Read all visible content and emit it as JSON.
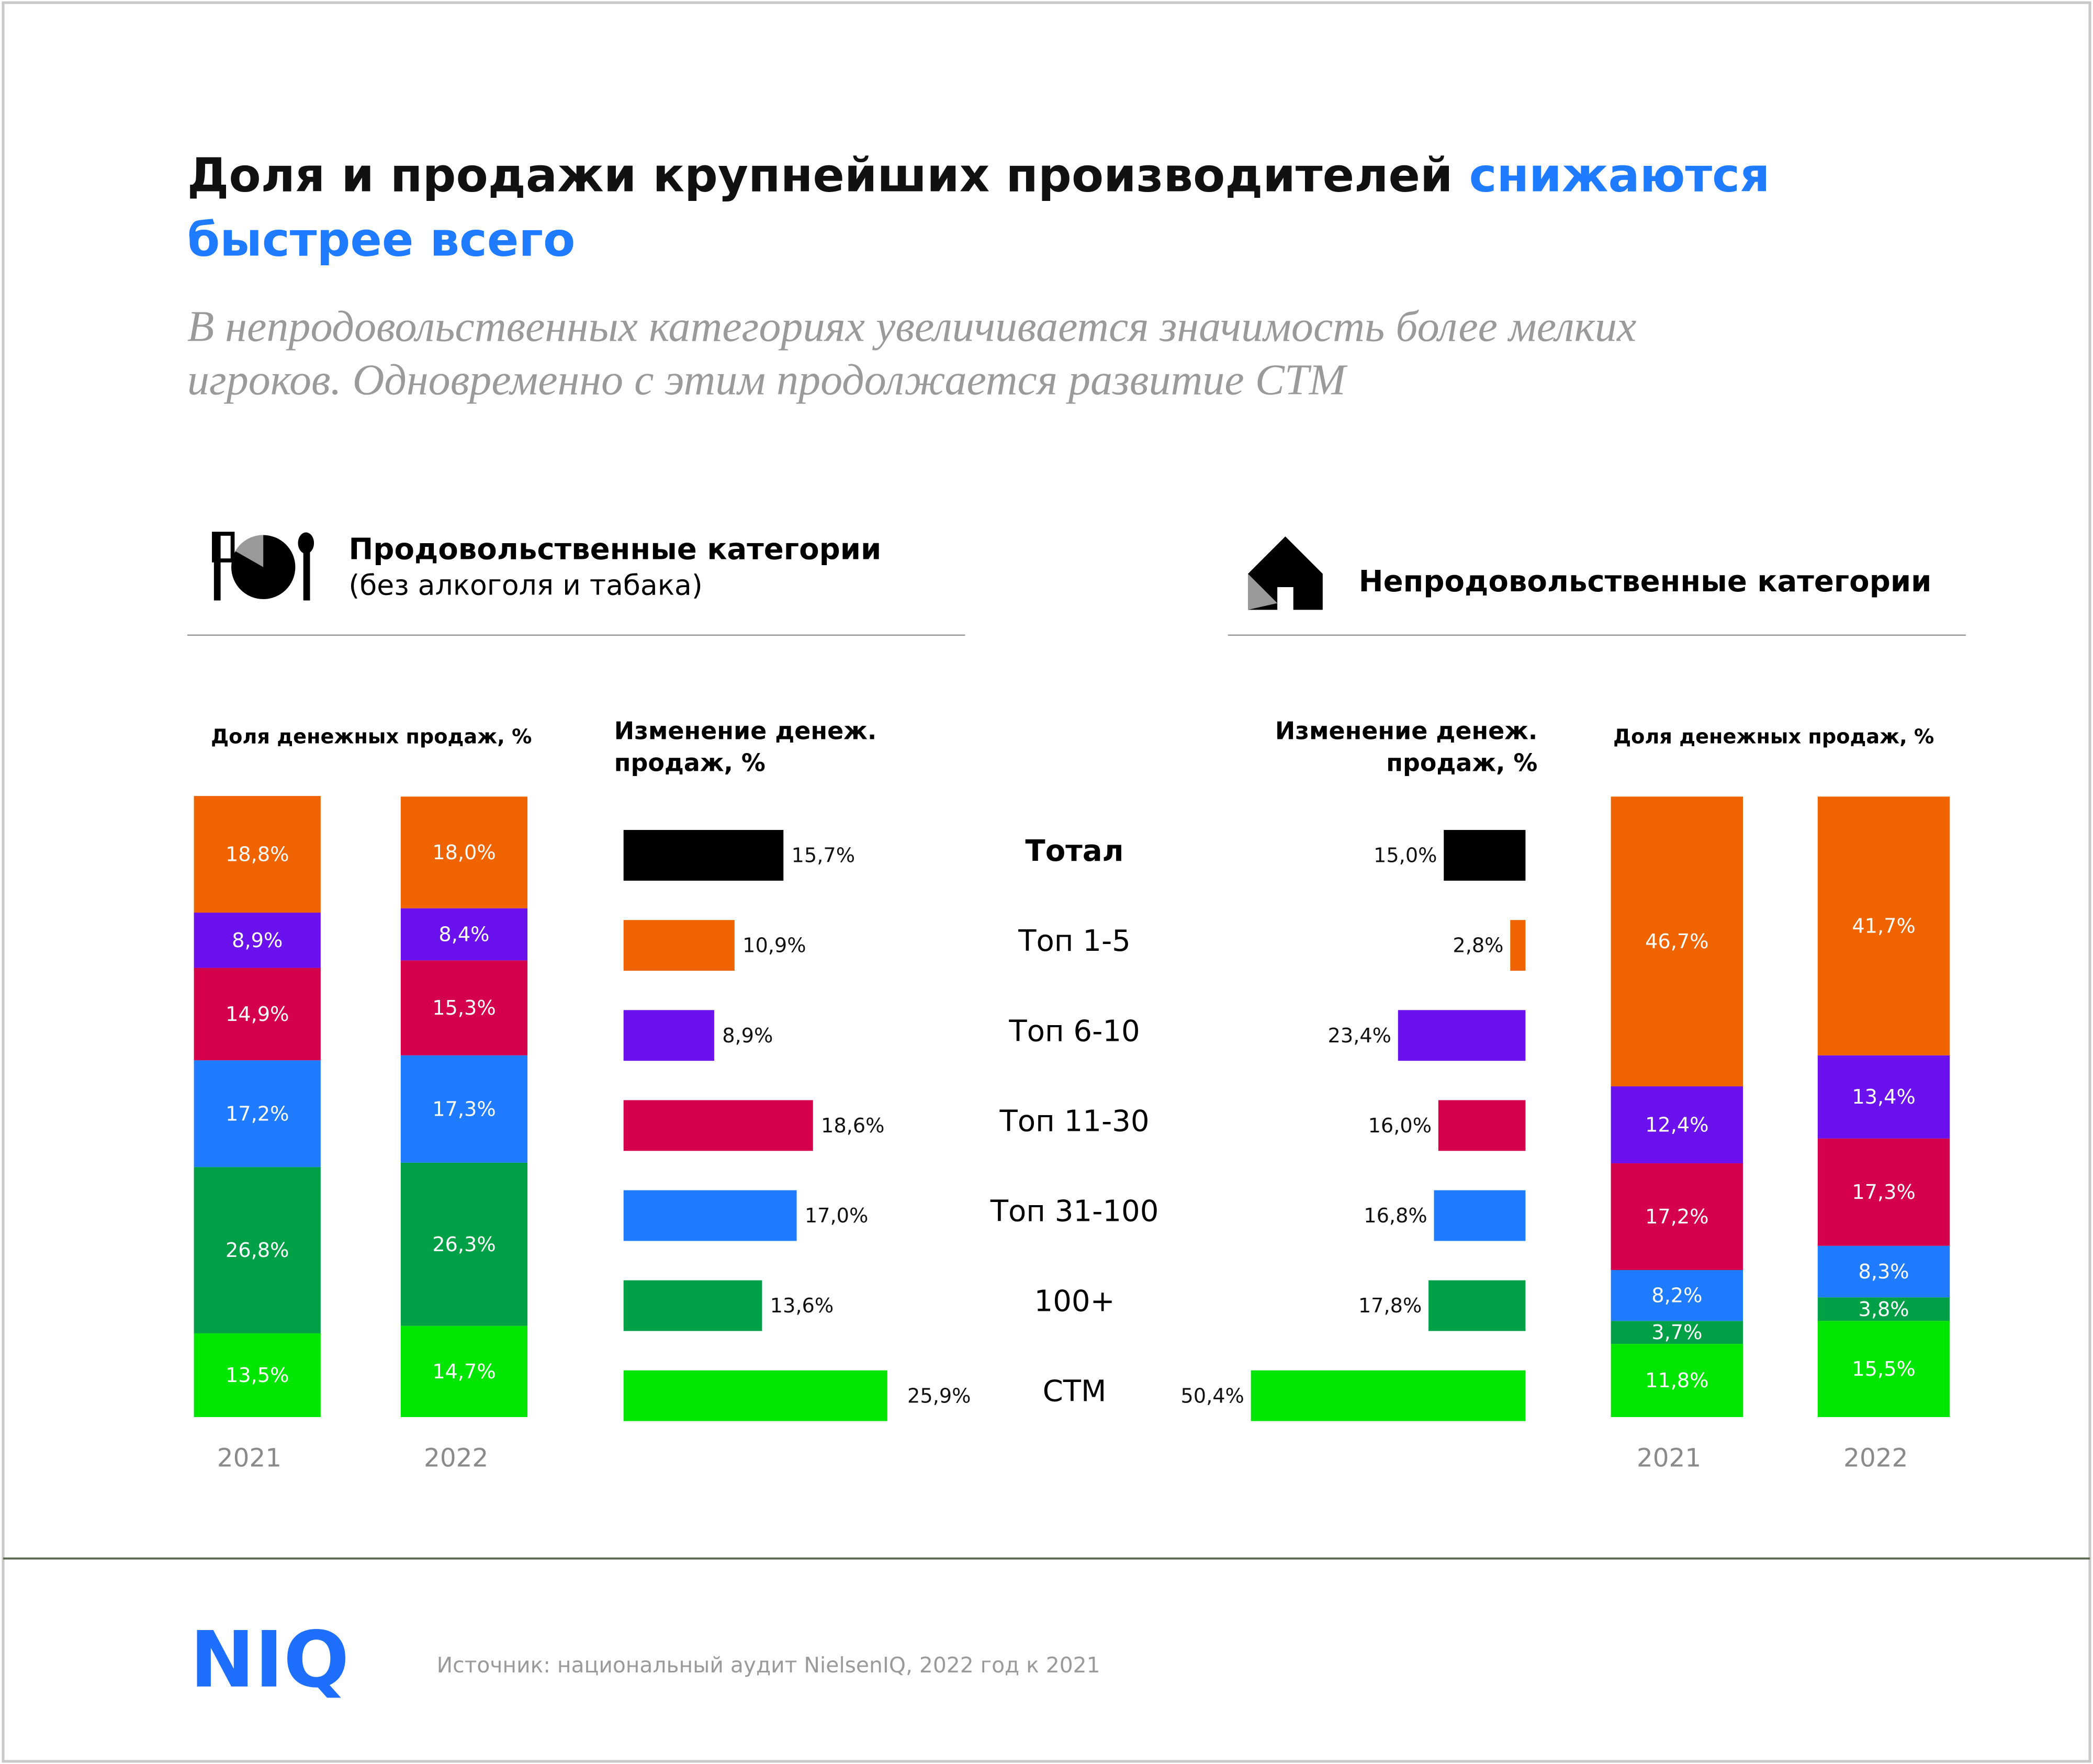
{
  "header": {
    "title": "Доля и продажи крупнейших производителей",
    "title_highlight": [
      "снижаются",
      "быстрее всего"
    ],
    "subtitle": [
      "В непродовольственных категориях увеличивается значимость более мелких",
      "игроков. Одновременно с этим продолжается развитие СТМ"
    ]
  },
  "panels": [
    {
      "title": "Продовольственные категории",
      "note": "(без алкоголя и табака)"
    },
    {
      "title": "Непродовольственные категории"
    }
  ],
  "chart_data": [
    {
      "type": "stacked-bar",
      "title": "Доля денежных продаж, %",
      "categories": [
        "2021",
        "2022"
      ],
      "ylim": [
        0,
        100
      ],
      "series": [
        {
          "color": "#00e600",
          "values": [
            13.5,
            14.7
          ],
          "value_labels": [
            "13,5%",
            "14,7%"
          ]
        },
        {
          "color": "#00a046",
          "values": [
            26.8,
            26.3
          ],
          "value_labels": [
            "26,8%",
            "26,3%"
          ]
        },
        {
          "color": "#1f7bff",
          "values": [
            17.2,
            17.3
          ],
          "value_labels": [
            "17,2%",
            "17,3%"
          ]
        },
        {
          "color": "#d5004b",
          "values": [
            14.9,
            15.3
          ],
          "value_labels": [
            "14,9%",
            "15,3%"
          ]
        },
        {
          "color": "#6a11ee",
          "values": [
            8.9,
            8.4
          ],
          "value_labels": [
            "8,9%",
            "8,4%"
          ]
        },
        {
          "color": "#f06400",
          "values": [
            18.8,
            18.0
          ],
          "value_labels": [
            "18,8%",
            "18,0%"
          ]
        }
      ]
    },
    {
      "type": "hbar",
      "title": [
        "Изменение денеж.",
        "продаж, %"
      ],
      "categories": [
        "Тотал",
        "Топ 1-5",
        "Топ 6-10",
        "Топ 11-30",
        "Топ 31-100",
        "100+",
        "СТМ"
      ],
      "xlim": [
        0,
        30
      ],
      "values": [
        15.7,
        10.9,
        8.9,
        18.6,
        17.0,
        13.6,
        25.9
      ],
      "value_labels": [
        "15,7%",
        "10,9%",
        "8,9%",
        "18,6%",
        "17,0%",
        "13,6%",
        "25,9%"
      ],
      "colors": [
        "#000000",
        "#f06400",
        "#6a11ee",
        "#d5004b",
        "#1f7bff",
        "#00a046",
        "#00e600"
      ]
    },
    {
      "type": "hbar",
      "title": [
        "Изменение денеж.",
        "продаж, %"
      ],
      "xlim": [
        0,
        60
      ],
      "values": [
        15.0,
        2.8,
        23.4,
        16.0,
        16.8,
        17.8,
        50.4
      ],
      "value_labels": [
        "15,0%",
        "2,8%",
        "23,4%",
        "16,0%",
        "16,8%",
        "17,8%",
        "50,4%"
      ],
      "colors": [
        "#000000",
        "#f06400",
        "#6a11ee",
        "#d5004b",
        "#1f7bff",
        "#00a046",
        "#00e600"
      ]
    },
    {
      "type": "stacked-bar",
      "title": "Доля денежных продаж, %",
      "categories": [
        "2021",
        "2022"
      ],
      "ylim": [
        0,
        100
      ],
      "series": [
        {
          "color": "#00e600",
          "values": [
            11.8,
            15.5
          ],
          "value_labels": [
            "11,8%",
            "15,5%"
          ]
        },
        {
          "color": "#00a046",
          "values": [
            3.7,
            3.8
          ],
          "value_labels": [
            "3,7%",
            "3,8%"
          ]
        },
        {
          "color": "#1f7bff",
          "values": [
            8.2,
            8.3
          ],
          "value_labels": [
            "8,2%",
            "8,3%"
          ]
        },
        {
          "color": "#d5004b",
          "values": [
            17.2,
            17.3
          ],
          "value_labels": [
            "17,2%",
            "17,3%"
          ]
        },
        {
          "color": "#6a11ee",
          "values": [
            12.4,
            13.4
          ],
          "value_labels": [
            "12,4%",
            "13,4%"
          ]
        },
        {
          "color": "#f06400",
          "values": [
            46.7,
            41.7
          ],
          "value_labels": [
            "46,7%",
            "41,7%"
          ]
        }
      ]
    }
  ],
  "footer": {
    "logo": "NIQ",
    "source": "Источник: национальный аудит NielsenIQ, 2022 год к 2021"
  }
}
